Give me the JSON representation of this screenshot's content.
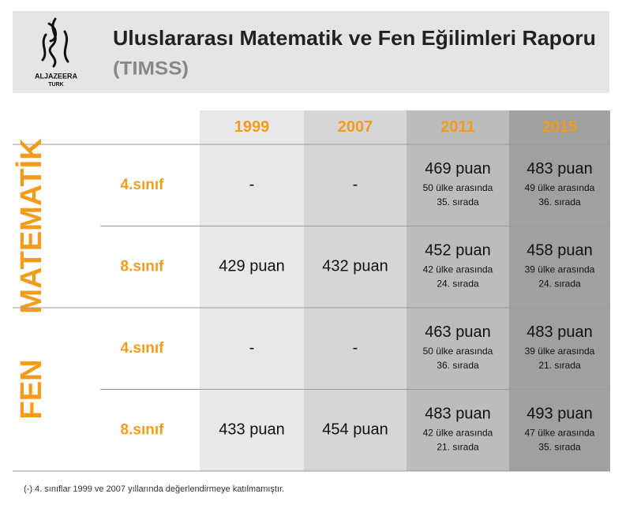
{
  "header": {
    "logo_text": "ALJAZEERA",
    "logo_sub": "TURK",
    "title": "Uluslararası Matematik ve Fen Eğilimleri Raporu",
    "subtitle": "(TIMSS)"
  },
  "table": {
    "columns": [
      "1999",
      "2007",
      "2011",
      "2015"
    ],
    "groups": [
      {
        "name": "MATEMATİK",
        "rows": [
          {
            "label": "4.sınıf",
            "cells": [
              {
                "score": "-"
              },
              {
                "score": "-"
              },
              {
                "score": "469 puan",
                "detail": [
                  "50 ülke arasında",
                  "35. sırada"
                ]
              },
              {
                "score": "483 puan",
                "detail": [
                  "49 ülke arasında",
                  "36. sırada"
                ]
              }
            ]
          },
          {
            "label": "8.sınıf",
            "cells": [
              {
                "score": "429 puan"
              },
              {
                "score": "432 puan"
              },
              {
                "score": "452 puan",
                "detail": [
                  "42 ülke arasında",
                  "24. sırada"
                ]
              },
              {
                "score": "458 puan",
                "detail": [
                  "39 ülke arasında",
                  "24. sırada"
                ]
              }
            ]
          }
        ]
      },
      {
        "name": "FEN",
        "rows": [
          {
            "label": "4.sınıf",
            "cells": [
              {
                "score": "-"
              },
              {
                "score": "-"
              },
              {
                "score": "463 puan",
                "detail": [
                  "50 ülke arasında",
                  "36. sırada"
                ]
              },
              {
                "score": "483 puan",
                "detail": [
                  "39 ülke arasında",
                  "21. sırada"
                ]
              }
            ]
          },
          {
            "label": "8.sınıf",
            "cells": [
              {
                "score": "433 puan"
              },
              {
                "score": "454 puan"
              },
              {
                "score": "483 puan",
                "detail": [
                  "42 ülke arasında",
                  "21. sırada"
                ]
              },
              {
                "score": "493 puan",
                "detail": [
                  "47 ülke arasında",
                  "35. sırada"
                ]
              }
            ]
          }
        ]
      }
    ]
  },
  "footnote": "(-) 4. sınıflar 1999 ve 2007  yıllarında değerlendirmeye katılmamıştır."
}
